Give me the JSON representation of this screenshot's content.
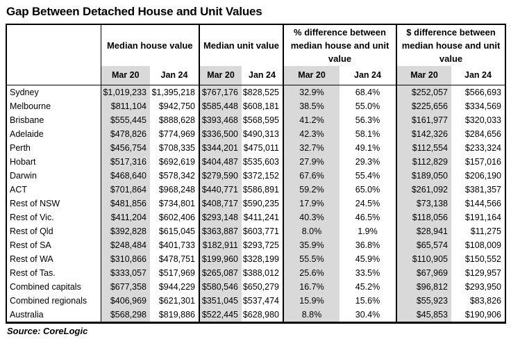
{
  "colors": {
    "shade": "#d9d9d9",
    "border": "#000000",
    "background": "#ffffff",
    "text": "#000000"
  },
  "chart_data": {
    "type": "table",
    "title": "Gap Between Detached House and Unit Values",
    "source": "Source: CoreLogic",
    "column_groups": [
      "Median house value",
      "Median unit value",
      "% difference between median house and unit value",
      "$ difference between median house and unit value"
    ],
    "periods": [
      "Mar 20",
      "Jan 24"
    ],
    "rows": [
      {
        "label": "Sydney",
        "cells": [
          "$1,019,233",
          "$1,395,218",
          "$767,176",
          "$828,525",
          "32.9%",
          "68.4%",
          "$252,057",
          "$566,693"
        ]
      },
      {
        "label": "Melbourne",
        "cells": [
          "$811,104",
          "$942,750",
          "$585,448",
          "$608,181",
          "38.5%",
          "55.0%",
          "$225,656",
          "$334,569"
        ]
      },
      {
        "label": "Brisbane",
        "cells": [
          "$555,445",
          "$888,628",
          "$393,468",
          "$568,595",
          "41.2%",
          "56.3%",
          "$161,977",
          "$320,033"
        ]
      },
      {
        "label": "Adelaide",
        "cells": [
          "$478,826",
          "$774,969",
          "$336,500",
          "$490,313",
          "42.3%",
          "58.1%",
          "$142,326",
          "$284,656"
        ]
      },
      {
        "label": "Perth",
        "cells": [
          "$456,754",
          "$708,335",
          "$344,201",
          "$475,011",
          "32.7%",
          "49.1%",
          "$112,554",
          "$233,324"
        ]
      },
      {
        "label": "Hobart",
        "cells": [
          "$517,316",
          "$692,619",
          "$404,487",
          "$535,603",
          "27.9%",
          "29.3%",
          "$112,829",
          "$157,016"
        ]
      },
      {
        "label": "Darwin",
        "cells": [
          "$468,640",
          "$578,342",
          "$279,590",
          "$372,152",
          "67.6%",
          "55.4%",
          "$189,050",
          "$206,190"
        ]
      },
      {
        "label": "ACT",
        "cells": [
          "$701,864",
          "$968,248",
          "$440,771",
          "$586,891",
          "59.2%",
          "65.0%",
          "$261,092",
          "$381,357"
        ]
      },
      {
        "label": "Rest of NSW",
        "cells": [
          "$481,856",
          "$734,801",
          "$408,717",
          "$590,235",
          "17.9%",
          "24.5%",
          "$73,138",
          "$144,566"
        ]
      },
      {
        "label": "Rest of Vic.",
        "cells": [
          "$411,204",
          "$602,406",
          "$293,148",
          "$411,241",
          "40.3%",
          "46.5%",
          "$118,056",
          "$191,164"
        ]
      },
      {
        "label": "Rest of Qld",
        "cells": [
          "$392,828",
          "$615,045",
          "$363,887",
          "$603,771",
          "8.0%",
          "1.9%",
          "$28,941",
          "$11,275"
        ]
      },
      {
        "label": "Rest of SA",
        "cells": [
          "$248,484",
          "$401,733",
          "$182,911",
          "$293,725",
          "35.9%",
          "36.8%",
          "$65,574",
          "$108,009"
        ]
      },
      {
        "label": "Rest of WA",
        "cells": [
          "$310,866",
          "$478,751",
          "$199,960",
          "$328,199",
          "55.5%",
          "45.9%",
          "$110,905",
          "$150,552"
        ]
      },
      {
        "label": "Rest of Tas.",
        "cells": [
          "$333,057",
          "$517,969",
          "$265,087",
          "$388,012",
          "25.6%",
          "33.5%",
          "$67,969",
          "$129,957"
        ]
      },
      {
        "label": "Combined capitals",
        "cells": [
          "$677,358",
          "$944,229",
          "$580,546",
          "$650,279",
          "16.7%",
          "45.2%",
          "$96,812",
          "$293,950"
        ]
      },
      {
        "label": "Combined regionals",
        "cells": [
          "$406,969",
          "$621,301",
          "$351,045",
          "$537,474",
          "15.9%",
          "15.6%",
          "$55,923",
          "$83,826"
        ]
      },
      {
        "label": "Australia",
        "cells": [
          "$568,298",
          "$819,886",
          "$522,445",
          "$628,980",
          "8.8%",
          "30.4%",
          "$45,853",
          "$190,906"
        ]
      }
    ]
  }
}
